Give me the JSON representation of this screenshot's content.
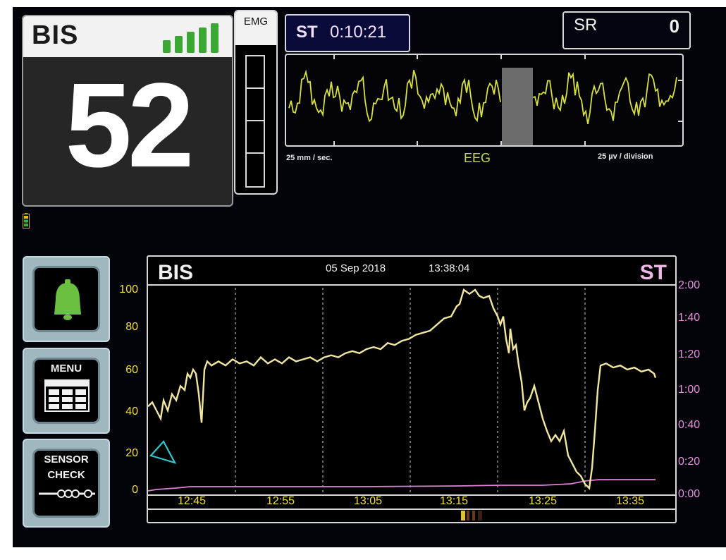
{
  "bis_panel": {
    "label": "BIS",
    "value": "52",
    "signal_quality_bars": 5
  },
  "emg": {
    "label": "EMG",
    "level": 0
  },
  "st_timer": {
    "label": "ST",
    "time": "0:10:21"
  },
  "sr": {
    "label": "SR",
    "value": "0"
  },
  "eeg": {
    "speed_label": "25 mm / sec.",
    "label": "EEG",
    "scale_label": "25 µv / division",
    "waveform_color": "#d8e040"
  },
  "buttons": {
    "alarm": {
      "icon": "bell-icon"
    },
    "menu": {
      "label": "MENU",
      "icon": "grid-icon"
    },
    "sensor_check": {
      "line1": "SENSOR",
      "line2": "CHECK",
      "icon": "sensor-cable-icon"
    }
  },
  "trend": {
    "title": "BIS",
    "date": "05 Sep 2018",
    "time": "13:38:04",
    "right_label": "ST",
    "left_axis": [
      "100",
      "80",
      "60",
      "40",
      "20",
      "0"
    ],
    "right_axis": [
      "2:00",
      "1:40",
      "1:20",
      "1:00",
      "0:40",
      "0:20",
      "0:00"
    ],
    "time_axis": [
      "12:45",
      "12:55",
      "13:05",
      "13:15",
      "13:25",
      "13:35"
    ],
    "colors": {
      "bis": "#f0e6a0",
      "st": "#e080d8",
      "marker": "#30c8d0",
      "axis_left": "#f0e040",
      "axis_right": "#e890e0"
    }
  }
}
